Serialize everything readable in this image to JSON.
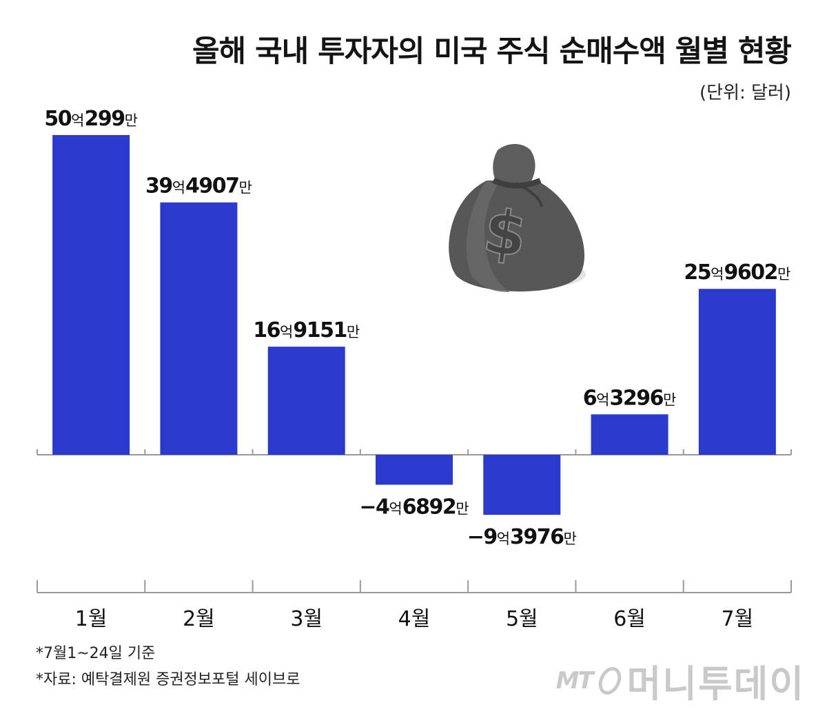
{
  "title": "올해 국내 투자자의 미국 주식 순매수액 월별 현황",
  "unit_note": "(단위: 달러)",
  "footnotes": [
    "*7월1~24일 기준",
    "*자료: 예탁결제원 증권정보포털 세이브로"
  ],
  "logo": {
    "mt": "MT",
    "name": "머니투데이"
  },
  "colors": {
    "bar": "#2b3acc",
    "axis": "#999999",
    "bag": "#555555"
  },
  "icon": "money-bag-icon",
  "chart_data": {
    "type": "bar",
    "title": "올해 국내 투자자의 미국 주식 순매수액 월별 현황",
    "ylabel": "",
    "xlabel": "",
    "unit": "달러",
    "categories": [
      "1월",
      "2월",
      "3월",
      "4월",
      "5월",
      "6월",
      "7월"
    ],
    "values": [
      5002990000,
      3949070000,
      1691510000,
      -468920000,
      -939760000,
      632960000,
      2596020000
    ],
    "data_labels": [
      {
        "sign": "",
        "eok": "50",
        "eok_unit": "억",
        "man": "299",
        "man_unit": "만"
      },
      {
        "sign": "",
        "eok": "39",
        "eok_unit": "억",
        "man": "4907",
        "man_unit": "만"
      },
      {
        "sign": "",
        "eok": "16",
        "eok_unit": "억",
        "man": "9151",
        "man_unit": "만"
      },
      {
        "sign": "−",
        "eok": "4",
        "eok_unit": "억",
        "man": "6892",
        "man_unit": "만"
      },
      {
        "sign": "−",
        "eok": "9",
        "eok_unit": "억",
        "man": "3976",
        "man_unit": "만"
      },
      {
        "sign": "",
        "eok": "6",
        "eok_unit": "억",
        "man": "3296",
        "man_unit": "만"
      },
      {
        "sign": "",
        "eok": "25",
        "eok_unit": "억",
        "man": "9602",
        "man_unit": "만"
      }
    ],
    "grid": false,
    "legend": "none"
  }
}
